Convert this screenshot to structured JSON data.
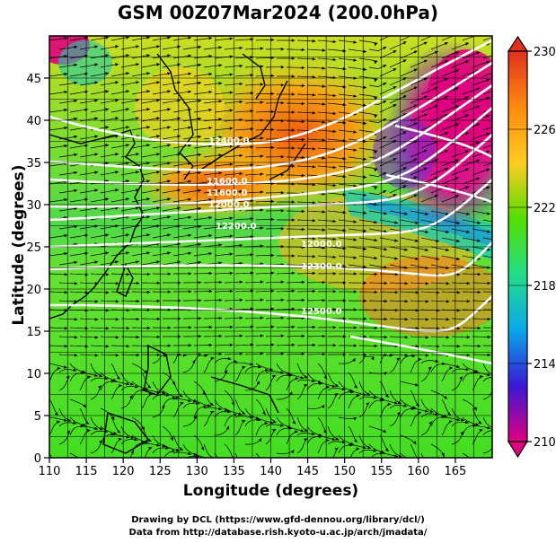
{
  "title": "GSM 00Z07Mar2024 (200.0hPa)",
  "xlabel": "Longitude (degrees)",
  "ylabel": "Latitude  (degrees)",
  "credits": {
    "line1": "Drawing by DCL (https://www.gfd-dennou.org/library/dcl/)",
    "line2": "Data from http://database.rish.kyoto-u.ac.jp/arch/jmadata/"
  },
  "map": {
    "lon_range": [
      110,
      170
    ],
    "lat_range": [
      0,
      50
    ],
    "x_ticks": [
      "110",
      "115",
      "120",
      "125",
      "130",
      "135",
      "140",
      "145",
      "150",
      "155",
      "160",
      "165"
    ],
    "y_ticks": [
      "0",
      "5",
      "10",
      "15",
      "20",
      "25",
      "30",
      "35",
      "40",
      "45"
    ],
    "grid": true,
    "contour_labels": [
      "11600.0",
      "11600.0",
      "12000.0",
      "12400.0",
      "12000.0",
      "12300.0",
      "12500.0",
      "12200.0"
    ]
  },
  "colorbar": {
    "labels": [
      "230",
      "226",
      "222",
      "218",
      "214",
      "210"
    ],
    "min": 210,
    "max": 230,
    "stops": [
      "#e0007e",
      "#3a18d6",
      "#0aa8e8",
      "#22dd88",
      "#55dd00",
      "#ffcc22",
      "#ff8a10",
      "#e03020"
    ]
  }
}
